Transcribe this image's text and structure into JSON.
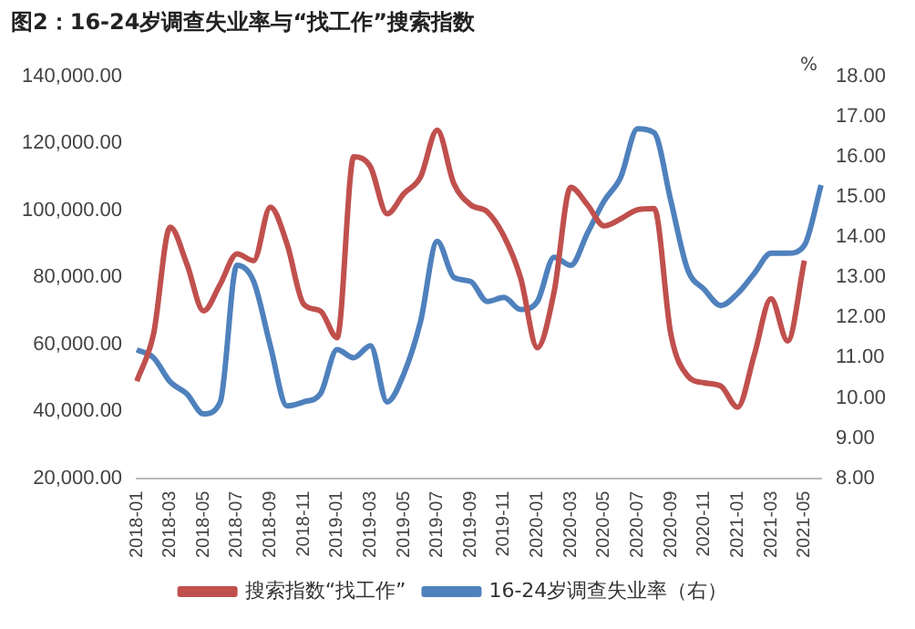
{
  "chart_data": {
    "type": "line",
    "title": "图2：16-24岁调查失业率与“找工作”搜索指数",
    "y2label": "%",
    "categories": [
      "2018-01",
      null,
      "2018-03",
      null,
      "2018-05",
      null,
      "2018-07",
      null,
      "2018-09",
      null,
      "2018-11",
      null,
      "2019-01",
      null,
      "2019-03",
      null,
      "2019-05",
      null,
      "2019-07",
      null,
      "2019-09",
      null,
      "2019-11",
      null,
      "2020-01",
      null,
      "2020-03",
      null,
      "2020-05",
      null,
      "2020-07",
      null,
      "2020-09",
      null,
      "2020-11",
      null,
      "2021-01",
      null,
      "2021-03",
      null,
      "2021-05",
      null
    ],
    "series": [
      {
        "name": "搜索指数“找工作”",
        "color": "#c0504d",
        "values": [
          49000,
          63000,
          95000,
          84000,
          70000,
          78000,
          87000,
          85000,
          101000,
          90000,
          72000,
          70000,
          62000,
          116000,
          113000,
          99000,
          105000,
          110000,
          124000,
          108000,
          101700,
          99600,
          92300,
          79800,
          59000,
          75600,
          106900,
          101700,
          95400,
          97500,
          100200,
          100600,
          63000,
          50600,
          48500,
          47500,
          41200,
          56900,
          73600,
          61000,
          85000,
          null
        ]
      },
      {
        "name": "16-24岁调查失业率（右）",
        "color": "#4f81bd",
        "axis": "y2",
        "values": [
          11.2,
          11.0,
          10.4,
          10.1,
          9.6,
          9.9,
          13.3,
          12.9,
          11.3,
          9.8,
          9.9,
          10.1,
          11.2,
          11.0,
          11.3,
          9.9,
          10.6,
          11.9,
          13.9,
          13.0,
          12.9,
          12.4,
          12.5,
          12.2,
          12.4,
          13.5,
          13.3,
          14.1,
          14.9,
          15.5,
          16.7,
          16.6,
          14.9,
          13.2,
          12.7,
          12.3,
          12.6,
          13.1,
          13.6,
          13.6,
          13.8,
          15.3
        ]
      }
    ],
    "ylim": [
      20000,
      140000
    ],
    "yticks": [
      {
        "value": 20000,
        "label": "20,000.00"
      },
      {
        "value": 40000,
        "label": "40,000.00"
      },
      {
        "value": 60000,
        "label": "60,000.00"
      },
      {
        "value": 80000,
        "label": "80,000.00"
      },
      {
        "value": 100000,
        "label": "100,000.00"
      },
      {
        "value": 120000,
        "label": "120,000.00"
      },
      {
        "value": 140000,
        "label": "140,000.00"
      }
    ],
    "y2lim": [
      8,
      18
    ],
    "y2ticks": [
      {
        "value": 8,
        "label": "8.00"
      },
      {
        "value": 9,
        "label": "9.00"
      },
      {
        "value": 10,
        "label": "10.00"
      },
      {
        "value": 11,
        "label": "11.00"
      },
      {
        "value": 12,
        "label": "12.00"
      },
      {
        "value": 13,
        "label": "13.00"
      },
      {
        "value": 14,
        "label": "14.00"
      },
      {
        "value": 15,
        "label": "15.00"
      },
      {
        "value": 16,
        "label": "16.00"
      },
      {
        "value": 17,
        "label": "17.00"
      },
      {
        "value": 18,
        "label": "18.00"
      }
    ],
    "grid": false,
    "legend": "bottom",
    "marker": "none",
    "line_style": "solid"
  }
}
